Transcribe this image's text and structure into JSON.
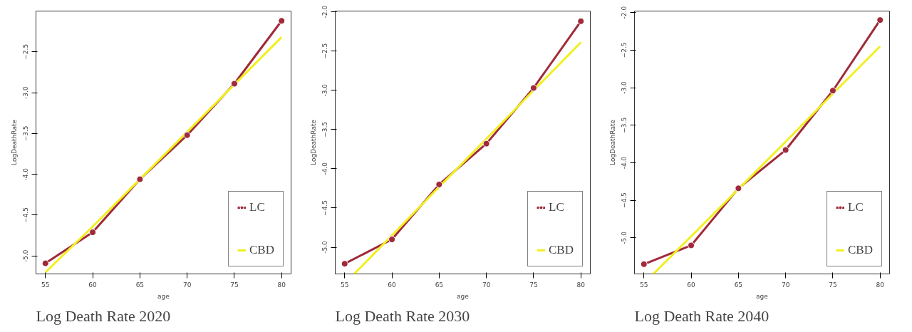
{
  "chart_data": [
    {
      "type": "line",
      "title": "Log Death Rate 2020",
      "xlabel": "age",
      "ylabel": "LogDeathRate",
      "x": [
        55,
        60,
        65,
        70,
        75,
        80
      ],
      "xlim": [
        54,
        81
      ],
      "ylim": [
        -5.22,
        -2.0
      ],
      "xticks": [
        55,
        60,
        65,
        70,
        75,
        80
      ],
      "yticks": [
        {
          "value": -5,
          "label": "-5.0"
        },
        -4.5,
        {
          "value": -4,
          "label": "-4.0"
        },
        -3.5,
        {
          "value": -3,
          "label": "-3.0"
        },
        -2.5
      ],
      "grid": false,
      "legend": "bottom right",
      "series": [
        {
          "name": "LC",
          "color": "#a02a3a",
          "marker": "circle",
          "values": [
            -5.09,
            -4.71,
            -4.06,
            -3.52,
            -2.89,
            -2.12
          ]
        },
        {
          "name": "CBD",
          "color": "#f0f020",
          "marker": "none",
          "values": [
            -5.2,
            -4.64,
            -4.06,
            -3.48,
            -2.9,
            -2.32
          ]
        }
      ]
    },
    {
      "type": "line",
      "title": "Log Death Rate 2030",
      "xlabel": "age",
      "ylabel": "LogDeathRate",
      "x": [
        55,
        60,
        65,
        70,
        75,
        80
      ],
      "xlim": [
        54,
        81
      ],
      "ylim": [
        -5.34,
        -1.99
      ],
      "xticks": [
        55,
        60,
        65,
        70,
        75,
        80
      ],
      "yticks": [
        {
          "value": -5,
          "label": "-5.0"
        },
        -4.5,
        {
          "value": -4,
          "label": "-4.0"
        },
        -3.5,
        {
          "value": -3,
          "label": "-3.0"
        },
        -2.5,
        {
          "value": -2,
          "label": "-2.0"
        }
      ],
      "grid": false,
      "legend": "bottom right",
      "series": [
        {
          "name": "LC",
          "color": "#a02a3a",
          "marker": "circle",
          "values": [
            -5.21,
            -4.9,
            -4.2,
            -3.68,
            -2.97,
            -2.12
          ]
        },
        {
          "name": "CBD",
          "color": "#f0f020",
          "marker": "none",
          "x": [
            56,
            60,
            65,
            70,
            75,
            80
          ],
          "values": [
            -5.34,
            -4.85,
            -4.23,
            -3.62,
            -3.0,
            -2.39
          ]
        }
      ]
    },
    {
      "type": "line",
      "title": "Log Death Rate 2040",
      "xlabel": "age",
      "ylabel": "LogDeathRate",
      "x": [
        55,
        60,
        65,
        70,
        75,
        80
      ],
      "xlim": [
        54,
        81
      ],
      "ylim": [
        -5.48,
        -1.98
      ],
      "xticks": [
        55,
        60,
        65,
        70,
        75,
        80
      ],
      "yticks": [
        {
          "value": -5,
          "label": "-5.0"
        },
        -4.5,
        {
          "value": -4,
          "label": "-4.0"
        },
        -3.5,
        {
          "value": -3,
          "label": "-3.0"
        },
        -2.5,
        {
          "value": -2,
          "label": "-2.0"
        }
      ],
      "grid": false,
      "legend": "bottom right",
      "series": [
        {
          "name": "LC",
          "color": "#a02a3a",
          "marker": "circle",
          "values": [
            -5.35,
            -5.1,
            -4.34,
            -3.83,
            -3.04,
            -2.1
          ]
        },
        {
          "name": "CBD",
          "color": "#f0f020",
          "marker": "none",
          "x": [
            56,
            60,
            65,
            70,
            75,
            80
          ],
          "values": [
            -5.48,
            -4.98,
            -4.35,
            -3.72,
            -3.08,
            -2.45
          ]
        }
      ]
    }
  ]
}
